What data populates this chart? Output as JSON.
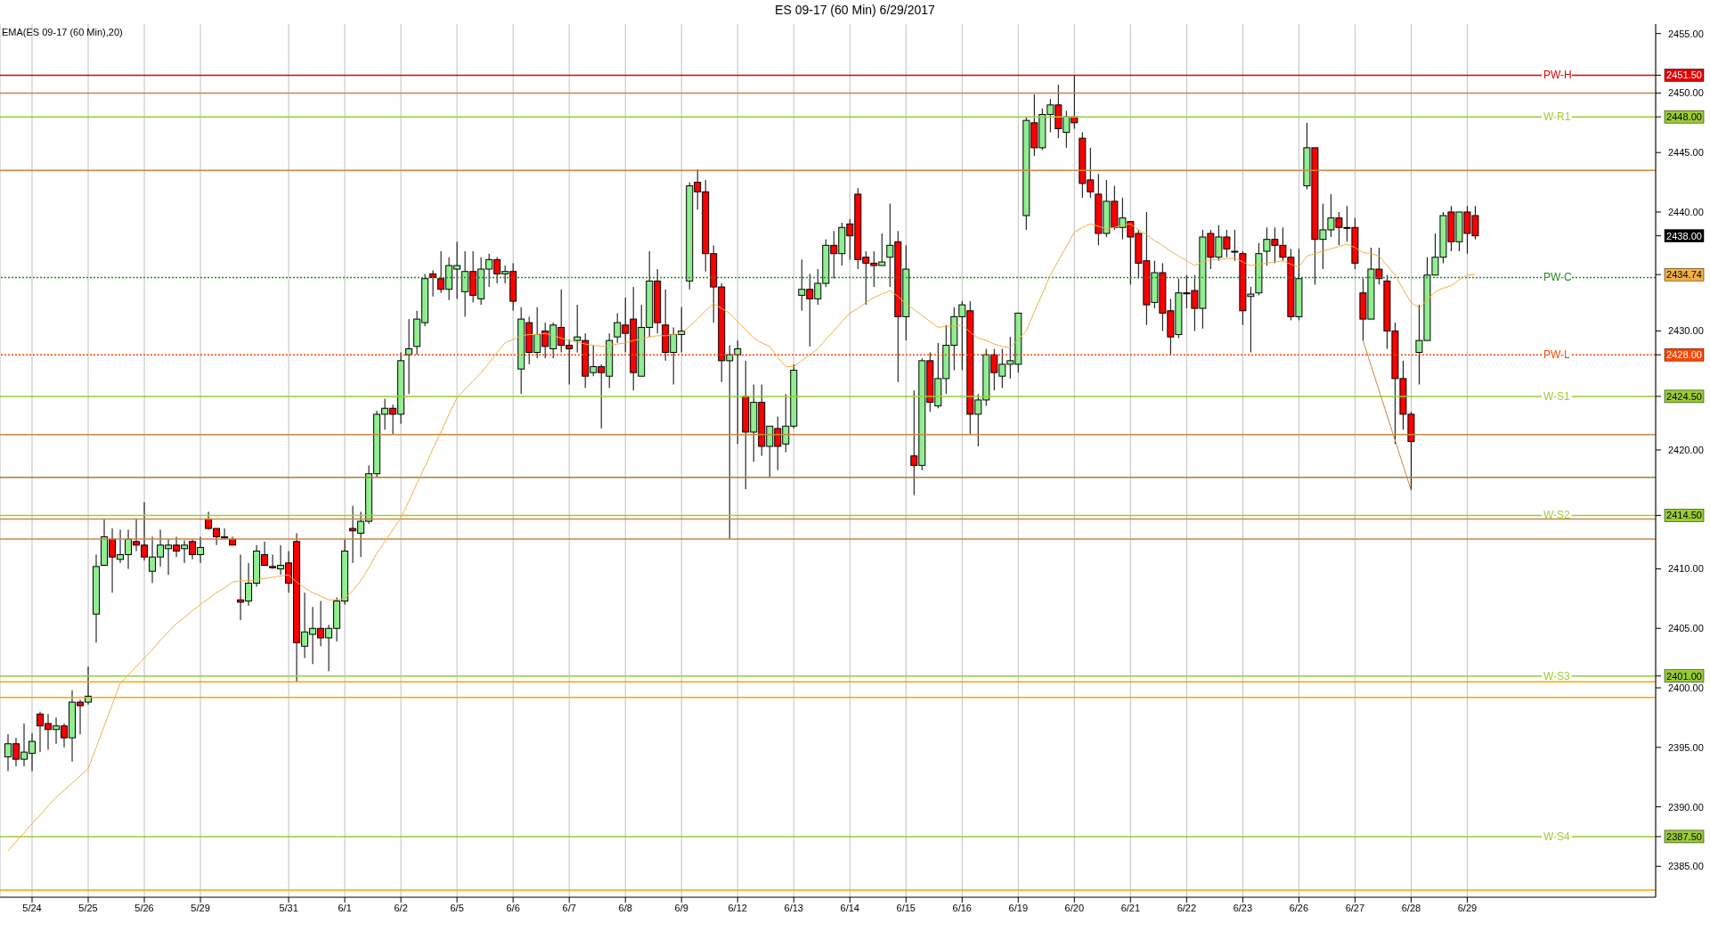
{
  "chart_data": {
    "type": "candlestick",
    "title": "ES 09-17 (60 Min)  6/29/2017",
    "annotations": [
      "EMA(ES 09-17 (60 Min),20)"
    ],
    "categories": [
      null,
      null,
      null,
      "5/24",
      null,
      null,
      null,
      null,
      null,
      null,
      "5/25",
      null,
      null,
      null,
      null,
      null,
      null,
      "5/26",
      null,
      null,
      null,
      null,
      null,
      null,
      "5/29",
      null,
      null,
      null,
      null,
      null,
      null,
      null,
      null,
      null,
      null,
      "5/31",
      null,
      null,
      null,
      null,
      null,
      null,
      "6/1",
      null,
      null,
      null,
      null,
      null,
      null,
      "6/2",
      null,
      null,
      null,
      null,
      null,
      null,
      "6/5",
      null,
      null,
      null,
      null,
      null,
      null,
      "6/6",
      null,
      null,
      null,
      null,
      null,
      null,
      "6/7",
      null,
      null,
      null,
      null,
      null,
      null,
      "6/8",
      null,
      null,
      null,
      null,
      null,
      null,
      "6/9",
      null,
      null,
      null,
      null,
      null,
      null,
      "6/12",
      null,
      null,
      null,
      null,
      null,
      null,
      "6/13",
      null,
      null,
      null,
      null,
      null,
      null,
      "6/14",
      null,
      null,
      null,
      null,
      null,
      null,
      "6/15",
      null,
      null,
      null,
      null,
      null,
      null,
      "6/16",
      null,
      null,
      null,
      null,
      null,
      null,
      "6/19",
      null,
      null,
      null,
      null,
      null,
      null,
      "6/20",
      null,
      null,
      null,
      null,
      null,
      null,
      "6/21",
      null,
      null,
      null,
      null,
      null,
      null,
      "6/22",
      null,
      null,
      null,
      null,
      null,
      null,
      "6/23",
      null,
      null,
      null,
      null,
      null,
      null,
      "6/26",
      null,
      null,
      null,
      null,
      null,
      null,
      "6/27",
      null,
      null,
      null,
      null,
      null,
      null,
      "6/28",
      null,
      null,
      null,
      null,
      null,
      null,
      "6/29",
      null
    ],
    "ohlc": [
      [
        2394.2,
        2396.1,
        2393.0,
        2395.3
      ],
      [
        2395.3,
        2395.8,
        2393.4,
        2394.0
      ],
      [
        2394.0,
        2397.0,
        2393.4,
        2394.6
      ],
      [
        2394.5,
        2396.2,
        2393.0,
        2395.5
      ],
      [
        2397.8,
        2398.0,
        2394.6,
        2396.8
      ],
      [
        2397.0,
        2397.8,
        2394.8,
        2396.5
      ],
      [
        2396.5,
        2397.5,
        2395.3,
        2396.8
      ],
      [
        2396.8,
        2397.0,
        2395.0,
        2395.8
      ],
      [
        2395.8,
        2399.8,
        2393.8,
        2398.8
      ],
      [
        2398.8,
        2399.0,
        2396.1,
        2398.5
      ],
      [
        2398.8,
        2401.8,
        2398.6,
        2399.3
      ],
      [
        2406.2,
        2411.2,
        2403.8,
        2410.2
      ],
      [
        2410.3,
        2414.2,
        2410.3,
        2412.7
      ],
      [
        2412.5,
        2413.4,
        2408.0,
        2411.0
      ],
      [
        2410.8,
        2413.3,
        2410.5,
        2411.2
      ],
      [
        2411.2,
        2413.3,
        2410.0,
        2412.5
      ],
      [
        2412.3,
        2414.2,
        2411.5,
        2412.0
      ],
      [
        2412.0,
        2415.6,
        2410.7,
        2411.0
      ],
      [
        2409.8,
        2412.7,
        2408.8,
        2411.0
      ],
      [
        2411.0,
        2413.3,
        2410.2,
        2412.0
      ],
      [
        2411.7,
        2412.5,
        2409.5,
        2412.0
      ],
      [
        2412.0,
        2412.7,
        2411.0,
        2411.5
      ],
      [
        2411.7,
        2412.4,
        2410.5,
        2412.0
      ],
      [
        2412.3,
        2412.5,
        2410.8,
        2411.2
      ],
      [
        2411.2,
        2412.7,
        2410.5,
        2411.8
      ],
      [
        2414.2,
        2414.8,
        2413.3,
        2413.4
      ],
      [
        2413.4,
        2413.4,
        2412.0,
        2412.7
      ],
      [
        2412.7,
        2413.4,
        2412.5,
        2412.6
      ],
      [
        2412.5,
        2412.7,
        2412.0,
        2412.0
      ],
      [
        2407.4,
        2411.2,
        2405.7,
        2407.2
      ],
      [
        2407.3,
        2410.5,
        2406.9,
        2408.8
      ],
      [
        2408.8,
        2412.0,
        2408.5,
        2411.5
      ],
      [
        2411.2,
        2412.3,
        2410.3,
        2410.3
      ],
      [
        2410.2,
        2411.2,
        2410.0,
        2410.1
      ],
      [
        2410.0,
        2412.0,
        2409.5,
        2410.3
      ],
      [
        2410.5,
        2411.5,
        2408.0,
        2408.8
      ],
      [
        2412.3,
        2413.0,
        2400.5,
        2403.8
      ],
      [
        2403.5,
        2408.0,
        2402.5,
        2404.7
      ],
      [
        2404.5,
        2406.8,
        2402.0,
        2405.0
      ],
      [
        2405.0,
        2407.3,
        2403.5,
        2404.2
      ],
      [
        2404.2,
        2405.3,
        2401.4,
        2405.0
      ],
      [
        2405.0,
        2407.6,
        2403.9,
        2407.3
      ],
      [
        2407.3,
        2412.5,
        2407.0,
        2411.5
      ],
      [
        2413.4,
        2415.3,
        2410.5,
        2413.2
      ],
      [
        2413.0,
        2414.8,
        2411.0,
        2414.0
      ],
      [
        2414.0,
        2418.7,
        2413.8,
        2418.0
      ],
      [
        2418.0,
        2423.3,
        2417.7,
        2423.0
      ],
      [
        2423.0,
        2424.3,
        2421.7,
        2423.5
      ],
      [
        2423.5,
        2423.8,
        2421.3,
        2423.0
      ],
      [
        2423.0,
        2428.2,
        2422.2,
        2427.5
      ],
      [
        2428.0,
        2431.0,
        2424.7,
        2428.5
      ],
      [
        2428.7,
        2431.7,
        2428.0,
        2431.0
      ],
      [
        2430.7,
        2434.8,
        2430.4,
        2434.4
      ],
      [
        2434.8,
        2435.1,
        2432.9,
        2434.5
      ],
      [
        2434.4,
        2436.7,
        2433.2,
        2433.5
      ],
      [
        2433.5,
        2436.2,
        2432.6,
        2435.5
      ],
      [
        2435.2,
        2437.5,
        2432.7,
        2435.5
      ],
      [
        2433.3,
        2436.7,
        2431.2,
        2435.0
      ],
      [
        2435.0,
        2436.7,
        2432.4,
        2433.0
      ],
      [
        2432.7,
        2436.2,
        2432.2,
        2435.2
      ],
      [
        2435.2,
        2436.5,
        2433.7,
        2436.0
      ],
      [
        2436.0,
        2436.2,
        2434.0,
        2434.8
      ],
      [
        2434.8,
        2435.5,
        2434.0,
        2435.0
      ],
      [
        2435.0,
        2435.7,
        2431.7,
        2432.5
      ],
      [
        2426.8,
        2432.0,
        2424.7,
        2431.0
      ],
      [
        2430.7,
        2431.2,
        2427.2,
        2428.2
      ],
      [
        2428.2,
        2432.0,
        2427.7,
        2429.7
      ],
      [
        2430.0,
        2430.7,
        2427.7,
        2428.7
      ],
      [
        2428.5,
        2430.7,
        2427.7,
        2430.5
      ],
      [
        2430.3,
        2433.5,
        2428.2,
        2428.8
      ],
      [
        2428.8,
        2429.3,
        2425.5,
        2428.5
      ],
      [
        2429.2,
        2432.2,
        2428.2,
        2429.5
      ],
      [
        2429.2,
        2429.8,
        2425.2,
        2426.2
      ],
      [
        2426.5,
        2428.8,
        2426.2,
        2427.0
      ],
      [
        2427.0,
        2427.2,
        2421.8,
        2426.5
      ],
      [
        2426.2,
        2429.8,
        2425.2,
        2429.2
      ],
      [
        2429.5,
        2431.5,
        2429.0,
        2430.7
      ],
      [
        2430.5,
        2432.8,
        2428.2,
        2429.8
      ],
      [
        2431.0,
        2433.7,
        2425.0,
        2426.5
      ],
      [
        2426.2,
        2432.2,
        2426.2,
        2430.3
      ],
      [
        2430.3,
        2436.7,
        2429.5,
        2434.2
      ],
      [
        2434.2,
        2435.2,
        2429.8,
        2430.7
      ],
      [
        2430.5,
        2433.5,
        2427.5,
        2428.2
      ],
      [
        2428.2,
        2430.3,
        2425.5,
        2429.7
      ],
      [
        2429.7,
        2432.0,
        2428.2,
        2430.0
      ],
      [
        2434.2,
        2442.5,
        2433.5,
        2442.2
      ],
      [
        2442.5,
        2443.6,
        2440.2,
        2441.7
      ],
      [
        2441.7,
        2442.7,
        2435.0,
        2436.5
      ],
      [
        2436.5,
        2437.2,
        2430.7,
        2433.7
      ],
      [
        2433.7,
        2434.0,
        2425.7,
        2427.5
      ],
      [
        2427.5,
        2428.8,
        2412.5,
        2428.0
      ],
      [
        2428.0,
        2429.2,
        2420.5,
        2428.5
      ],
      [
        2424.5,
        2427.5,
        2416.7,
        2421.5
      ],
      [
        2421.5,
        2425.5,
        2419.0,
        2424.0
      ],
      [
        2424.0,
        2425.5,
        2419.5,
        2420.3
      ],
      [
        2420.3,
        2422.0,
        2417.7,
        2422.0
      ],
      [
        2421.8,
        2422.8,
        2418.3,
        2420.3
      ],
      [
        2420.5,
        2424.7,
        2419.8,
        2422.0
      ],
      [
        2422.0,
        2427.2,
        2421.8,
        2426.7
      ],
      [
        2433.0,
        2436.0,
        2431.7,
        2433.5
      ],
      [
        2433.5,
        2434.8,
        2428.7,
        2432.7
      ],
      [
        2432.7,
        2435.2,
        2432.2,
        2434.0
      ],
      [
        2434.0,
        2437.7,
        2433.7,
        2437.2
      ],
      [
        2437.2,
        2438.4,
        2434.4,
        2436.5
      ],
      [
        2436.5,
        2439.1,
        2435.5,
        2438.7
      ],
      [
        2439.0,
        2439.4,
        2436.0,
        2438.0
      ],
      [
        2441.5,
        2442.0,
        2435.2,
        2436.0
      ],
      [
        2436.2,
        2436.7,
        2432.2,
        2435.7
      ],
      [
        2435.7,
        2436.7,
        2433.7,
        2435.5
      ],
      [
        2435.5,
        2438.2,
        2435.5,
        2435.8
      ],
      [
        2436.2,
        2440.7,
        2433.7,
        2437.2
      ],
      [
        2437.5,
        2438.4,
        2425.7,
        2431.2
      ],
      [
        2431.2,
        2437.2,
        2429.2,
        2435.2
      ],
      [
        2419.5,
        2425.0,
        2416.2,
        2418.7
      ],
      [
        2418.7,
        2427.7,
        2418.3,
        2427.5
      ],
      [
        2427.5,
        2428.2,
        2423.2,
        2424.0
      ],
      [
        2423.7,
        2429.0,
        2423.5,
        2426.0
      ],
      [
        2426.0,
        2430.5,
        2424.7,
        2428.8
      ],
      [
        2428.8,
        2432.0,
        2426.7,
        2431.2
      ],
      [
        2431.2,
        2432.5,
        2426.7,
        2432.2
      ],
      [
        2431.7,
        2432.5,
        2421.3,
        2423.0
      ],
      [
        2423.0,
        2424.7,
        2420.3,
        2424.2
      ],
      [
        2424.2,
        2428.5,
        2423.7,
        2428.0
      ],
      [
        2428.0,
        2428.5,
        2425.0,
        2426.5
      ],
      [
        2426.2,
        2428.5,
        2425.2,
        2427.2
      ],
      [
        2427.2,
        2429.5,
        2426.0,
        2427.5
      ],
      [
        2427.2,
        2431.5,
        2426.5,
        2431.5
      ],
      [
        2439.7,
        2448.0,
        2438.5,
        2447.7
      ],
      [
        2447.5,
        2449.9,
        2444.7,
        2445.4
      ],
      [
        2445.4,
        2448.7,
        2445.2,
        2448.2
      ],
      [
        2448.2,
        2449.5,
        2446.7,
        2449.0
      ],
      [
        2449.0,
        2450.7,
        2446.2,
        2447.0
      ],
      [
        2446.7,
        2448.5,
        2445.4,
        2448.0
      ],
      [
        2448.0,
        2451.5,
        2447.0,
        2447.5
      ],
      [
        2446.2,
        2446.7,
        2441.2,
        2442.4
      ],
      [
        2442.7,
        2445.4,
        2441.2,
        2441.7
      ],
      [
        2441.5,
        2443.2,
        2437.2,
        2438.2
      ],
      [
        2438.2,
        2442.7,
        2437.9,
        2440.9
      ],
      [
        2440.9,
        2442.2,
        2438.5,
        2438.7
      ],
      [
        2438.7,
        2441.2,
        2437.7,
        2439.5
      ],
      [
        2439.2,
        2439.2,
        2433.9,
        2437.9
      ],
      [
        2438.2,
        2438.5,
        2434.4,
        2435.7
      ],
      [
        2435.9,
        2440.0,
        2430.5,
        2432.2
      ],
      [
        2432.4,
        2435.9,
        2431.9,
        2434.9
      ],
      [
        2434.9,
        2435.7,
        2430.0,
        2431.5
      ],
      [
        2431.7,
        2432.7,
        2428.0,
        2429.5
      ],
      [
        2429.7,
        2434.4,
        2429.4,
        2433.2
      ],
      [
        2433.2,
        2434.7,
        2431.9,
        2433.2
      ],
      [
        2433.4,
        2434.7,
        2430.0,
        2431.9
      ],
      [
        2431.9,
        2438.5,
        2430.2,
        2437.9
      ],
      [
        2438.2,
        2438.5,
        2435.2,
        2436.2
      ],
      [
        2436.2,
        2438.9,
        2435.9,
        2437.9
      ],
      [
        2437.9,
        2438.5,
        2436.2,
        2436.9
      ],
      [
        2436.7,
        2438.5,
        2435.9,
        2436.7
      ],
      [
        2436.5,
        2436.7,
        2430.5,
        2431.7
      ],
      [
        2432.9,
        2433.7,
        2428.2,
        2433.1
      ],
      [
        2433.2,
        2437.4,
        2433.0,
        2436.5
      ],
      [
        2436.7,
        2438.7,
        2435.5,
        2437.7
      ],
      [
        2437.7,
        2438.7,
        2435.7,
        2437.2
      ],
      [
        2437.2,
        2438.7,
        2435.9,
        2436.2
      ],
      [
        2436.2,
        2436.9,
        2430.9,
        2431.2
      ],
      [
        2431.2,
        2436.9,
        2430.9,
        2434.4
      ],
      [
        2442.2,
        2447.5,
        2441.9,
        2445.4
      ],
      [
        2445.4,
        2445.4,
        2433.9,
        2437.7
      ],
      [
        2437.7,
        2440.7,
        2435.2,
        2438.5
      ],
      [
        2438.5,
        2441.5,
        2437.9,
        2439.5
      ],
      [
        2439.5,
        2440.0,
        2437.2,
        2438.7
      ],
      [
        2438.7,
        2440.5,
        2437.5,
        2438.7
      ],
      [
        2438.7,
        2439.5,
        2435.2,
        2435.7
      ],
      [
        2433.2,
        2434.4,
        2429.2,
        2431.0
      ],
      [
        2431.0,
        2437.0,
        2431.0,
        2435.2
      ],
      [
        2435.2,
        2437.0,
        2433.9,
        2434.4
      ],
      [
        2434.2,
        2434.7,
        2428.5,
        2430.0
      ],
      [
        2430.0,
        2430.7,
        2420.5,
        2426.0
      ],
      [
        2426.0,
        2427.5,
        2421.7,
        2423.0
      ],
      [
        2423.0,
        2423.2,
        2416.6,
        2420.7
      ],
      [
        2428.2,
        2432.2,
        2425.5,
        2429.2
      ],
      [
        2429.2,
        2436.2,
        2429.2,
        2434.7
      ],
      [
        2434.7,
        2438.2,
        2434.7,
        2436.2
      ],
      [
        2436.2,
        2440.0,
        2435.7,
        2439.7
      ],
      [
        2440.0,
        2440.5,
        2436.7,
        2437.5
      ],
      [
        2437.5,
        2440.0,
        2436.7,
        2440.0
      ],
      [
        2440.0,
        2440.5,
        2436.5,
        2438.2
      ],
      [
        2439.7,
        2440.5,
        2437.7,
        2438.0
      ]
    ],
    "series": [
      {
        "type": "line",
        "color": "#f5b041",
        "values": [
          2386.3,
          2387.1,
          2387.8,
          2388.6,
          2389.3,
          2390.1,
          2390.8,
          2391.4,
          2392.0,
          2392.6,
          2393.2,
          2395.0,
          2396.8,
          2398.6,
          2400.4,
          2401.1,
          2401.8,
          2402.5,
          2403.2,
          2404.0,
          2404.7,
          2405.4,
          2405.9,
          2406.5,
          2407.0,
          2407.5,
          2408.0,
          2408.4,
          2408.9,
          2409.0,
          2409.0,
          2409.1,
          2409.2,
          2409.3,
          2409.4,
          2409.5,
          2408.9,
          2408.4,
          2408.0,
          2407.7,
          2407.4,
          2407.4,
          2407.5,
          2408.2,
          2409.0,
          2410.1,
          2411.3,
          2412.3,
          2413.3,
          2414.3,
          2415.7,
          2417.2,
          2418.6,
          2420.1,
          2421.5,
          2423.0,
          2424.4,
          2425.1,
          2425.8,
          2426.5,
          2427.3,
          2428.2,
          2429.0,
          2429.3,
          2429.6,
          2429.7,
          2429.7,
          2429.8,
          2429.6,
          2429.4,
          2429.2,
          2429.1,
          2428.9,
          2428.8,
          2428.7,
          2428.8,
          2428.9,
          2429.0,
          2429.2,
          2429.3,
          2429.5,
          2429.6,
          2429.6,
          2429.7,
          2429.8,
          2430.4,
          2431.0,
          2431.7,
          2432.3,
          2431.9,
          2431.5,
          2430.8,
          2430.1,
          2429.4,
          2429.0,
          2428.7,
          2427.8,
          2427.0,
          2427.0,
          2427.5,
          2428.0,
          2428.5,
          2429.3,
          2430.0,
          2430.8,
          2431.5,
          2431.9,
          2432.4,
          2432.8,
          2433.1,
          2433.4,
          2432.9,
          2432.3,
          2431.8,
          2431.3,
          2430.8,
          2430.3,
          2430.4,
          2430.4,
          2430.5,
          2429.9,
          2429.4,
          2429.2,
          2428.9,
          2428.7,
          2428.6,
          2429.3,
          2430.0,
          2431.6,
          2433.1,
          2434.7,
          2435.9,
          2437.1,
          2438.3,
          2438.7,
          2439.0,
          2438.8,
          2438.6,
          2438.7,
          2438.9,
          2439.0,
          2438.5,
          2438.1,
          2437.6,
          2437.2,
          2436.7,
          2436.3,
          2435.9,
          2435.5,
          2435.8,
          2436.0,
          2436.0,
          2436.1,
          2436.1,
          2435.8,
          2435.5,
          2435.6,
          2435.7,
          2435.8,
          2435.9,
          2435.6,
          2435.4,
          2436.3,
          2436.5,
          2436.7,
          2436.9,
          2437.1,
          2437.3,
          2437.0,
          2436.6,
          2436.5,
          2436.3,
          2435.5,
          2434.7,
          2433.5,
          2432.4,
          2431.9,
          2432.6,
          2433.3,
          2433.6,
          2433.8,
          2434.3,
          2434.7,
          2434.74
        ]
      },
      {
        "type": "line",
        "color": "#cd853f",
        "values": [
          null,
          null,
          null,
          null,
          null,
          null,
          null,
          null,
          null,
          null,
          null,
          null,
          null,
          null,
          null,
          null,
          null,
          null,
          null,
          null,
          null,
          null,
          null,
          null,
          null,
          null,
          null,
          null,
          null,
          null,
          null,
          null,
          null,
          null,
          null,
          null,
          null,
          null,
          null,
          null,
          null,
          null,
          null,
          null,
          null,
          null,
          null,
          null,
          null,
          null,
          null,
          null,
          null,
          null,
          null,
          null,
          null,
          null,
          null,
          null,
          null,
          null,
          null,
          null,
          null,
          null,
          null,
          null,
          null,
          null,
          null,
          null,
          null,
          null,
          null,
          null,
          null,
          null,
          null,
          null,
          null,
          null,
          null,
          null,
          null,
          null,
          null,
          null,
          null,
          null,
          null,
          null,
          null,
          null,
          null,
          null,
          null,
          null,
          null,
          null,
          null,
          null,
          null,
          null,
          null,
          null,
          null,
          null,
          null,
          null,
          null,
          null,
          null,
          null,
          null,
          null,
          null,
          null,
          null,
          null,
          null,
          null,
          null,
          null,
          null,
          null,
          null,
          null,
          null,
          null,
          null,
          null,
          null,
          null,
          null,
          null,
          null,
          null,
          null,
          null,
          null,
          null,
          null,
          null,
          null,
          null,
          null,
          null,
          null,
          null,
          null,
          null,
          null,
          null,
          null,
          null,
          null,
          null,
          null,
          null,
          null,
          null,
          null,
          null,
          null,
          null,
          null,
          null,
          null,
          2429.2,
          null,
          null,
          null,
          null,
          null,
          2416.6,
          null,
          null,
          null,
          null,
          null,
          null,
          null,
          null
        ]
      }
    ],
    "ylim": [
      2382.4,
      2455.8
    ],
    "yticks": [
      {
        "value": 2385,
        "label": "2385.00"
      },
      {
        "value": 2387.5,
        "label": "2387.50"
      },
      {
        "value": 2390,
        "label": "2390.00"
      },
      {
        "value": 2395,
        "label": "2395.00"
      },
      {
        "value": 2400,
        "label": "2400.00"
      },
      {
        "value": 2401,
        "label": "2401.00"
      },
      {
        "value": 2405,
        "label": "2405.00"
      },
      {
        "value": 2410,
        "label": "2410.00"
      },
      {
        "value": 2414.5,
        "label": "2414.50"
      },
      {
        "value": 2420,
        "label": "2420.00"
      },
      {
        "value": 2424.5,
        "label": "2424.50"
      },
      {
        "value": 2428,
        "label": "2428.00"
      },
      {
        "value": 2430,
        "label": "2430.00"
      },
      {
        "value": 2434.74,
        "label": "2434.74"
      },
      {
        "value": 2438,
        "label": "2438.00"
      },
      {
        "value": 2440,
        "label": "2440.00"
      },
      {
        "value": 2445,
        "label": "2445.00"
      },
      {
        "value": 2448,
        "label": "2448.00"
      },
      {
        "value": 2450,
        "label": "2450.00"
      },
      {
        "value": 2451.5,
        "label": "2451.50"
      },
      {
        "value": 2455,
        "label": "2455.00"
      }
    ],
    "ref_lines": [
      {
        "axis": "y",
        "value": 2451.5,
        "label": "PW-H",
        "color": "#e00000"
      },
      {
        "axis": "y",
        "value": 2450,
        "color": "#cd853f"
      },
      {
        "axis": "y",
        "value": 2448,
        "label": "W-R1",
        "color": "#9acd32"
      },
      {
        "axis": "y",
        "value": 2443.5,
        "color": "#cd853f"
      },
      {
        "axis": "y",
        "value": 2434.5,
        "label": "PW-C",
        "color": "#228b22",
        "line_style": "dotted"
      },
      {
        "axis": "y",
        "value": 2428,
        "label": "PW-L",
        "color": "#ff4500",
        "line_style": "dotted"
      },
      {
        "axis": "y",
        "value": 2424.5,
        "label": "W-S1",
        "color": "#9acd32"
      },
      {
        "axis": "y",
        "value": 2421.3,
        "color": "#cd853f"
      },
      {
        "axis": "y",
        "value": 2417.7,
        "color": "#a0822d"
      },
      {
        "axis": "y",
        "value": 2414.5,
        "label": "W-S2",
        "color": "#9acd32"
      },
      {
        "axis": "y",
        "value": 2414.2,
        "color": "#cd853f"
      },
      {
        "axis": "y",
        "value": 2412.5,
        "color": "#cd853f"
      },
      {
        "axis": "y",
        "value": 2401,
        "label": "W-S3",
        "color": "#9acd32"
      },
      {
        "axis": "y",
        "value": 2400.5,
        "color": "#ffa500"
      },
      {
        "axis": "y",
        "value": 2399.2,
        "color": "#ffa500"
      },
      {
        "axis": "y",
        "value": 2387.5,
        "label": "W-S4",
        "color": "#9acd32"
      },
      {
        "axis": "y",
        "value": 2383,
        "color": "#ffa500"
      }
    ],
    "grid": "x"
  }
}
